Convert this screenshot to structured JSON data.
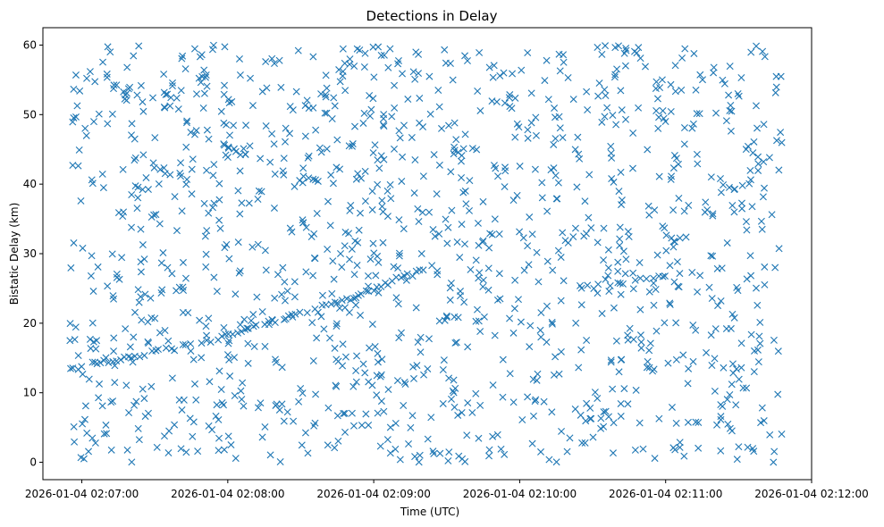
{
  "chart_data": {
    "type": "scatter",
    "title": "Detections in Delay",
    "xlabel": "Time (UTC)",
    "ylabel": "Bistatic Delay (km)",
    "marker": "x",
    "color": "#1f77b4",
    "grid": false,
    "xlim": [
      "2026-01-04 02:06:44",
      "2026-01-04 02:12:00"
    ],
    "ylim": [
      -2.5,
      62.5
    ],
    "x_ticks": [
      "2026-01-04 02:07:00",
      "2026-01-04 02:08:00",
      "2026-01-04 02:09:00",
      "2026-01-04 02:10:00",
      "2026-01-04 02:11:00",
      "2026-01-04 02:12:00"
    ],
    "y_ticks": [
      0,
      10,
      20,
      30,
      40,
      50,
      60
    ],
    "time_range": [
      "2026-01-04 02:06:55",
      "2026-01-04 02:11:48"
    ],
    "point_count": 1400,
    "track": [
      {
        "x": "2026-01-04 02:06:55",
        "y": 13.4
      },
      {
        "x": "2026-01-04 02:07:10",
        "y": 14.5
      },
      {
        "x": "2026-01-04 02:07:40",
        "y": 16.5
      },
      {
        "x": "2026-01-04 02:08:00",
        "y": 18.2
      },
      {
        "x": "2026-01-04 02:08:20",
        "y": 20.4
      },
      {
        "x": "2026-01-04 02:08:50",
        "y": 23.5
      },
      {
        "x": "2026-01-04 02:09:10",
        "y": 26.3
      },
      {
        "x": "2026-01-04 02:09:25",
        "y": 28.2
      }
    ],
    "track_cluster_2": [
      {
        "x": "2026-01-04 02:10:25",
        "y": 25.2
      },
      {
        "x": "2026-01-04 02:11:00",
        "y": 26.5
      }
    ]
  }
}
